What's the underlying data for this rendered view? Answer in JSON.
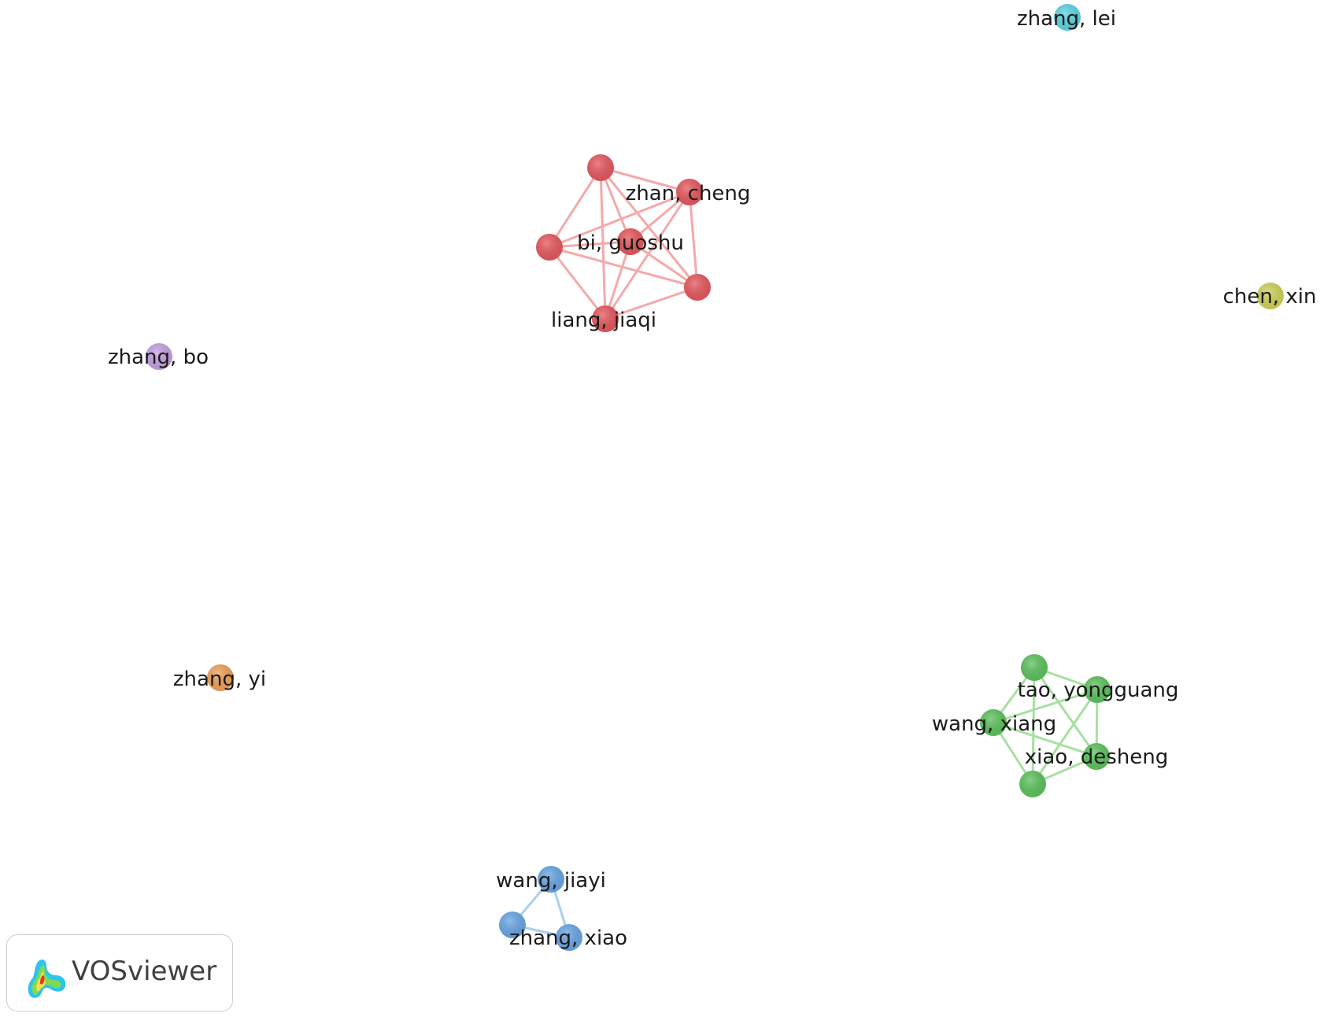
{
  "app": {
    "name": "VOSviewer"
  },
  "clusters": [
    {
      "id": "red",
      "color": "#e8595f",
      "edge_color": "#f4a9aa"
    },
    {
      "id": "green",
      "color": "#5fc45f",
      "edge_color": "#a7e0a1"
    },
    {
      "id": "blue",
      "color": "#6aa8e6",
      "edge_color": "#a9cff0"
    },
    {
      "id": "cyan",
      "color": "#5fd6e6",
      "edge_color": "#a9e6f0"
    },
    {
      "id": "yellow",
      "color": "#d1d45a",
      "edge_color": "#e6e8a8"
    },
    {
      "id": "purple",
      "color": "#c8a2e6",
      "edge_color": "#e0cdf2"
    },
    {
      "id": "orange",
      "color": "#f2a35c",
      "edge_color": "#f7cfa8"
    }
  ],
  "nodes": [
    {
      "id": "r1",
      "label": "",
      "cluster": "red"
    },
    {
      "id": "zhan-cheng",
      "label": "zhan, cheng",
      "cluster": "red"
    },
    {
      "id": "bi-guoshu",
      "label": "bi, guoshu",
      "cluster": "red"
    },
    {
      "id": "r4",
      "label": "",
      "cluster": "red"
    },
    {
      "id": "r5",
      "label": "",
      "cluster": "red"
    },
    {
      "id": "liang-jiaqi",
      "label": "liang, jiaqi",
      "cluster": "red"
    },
    {
      "id": "g1",
      "label": "",
      "cluster": "green"
    },
    {
      "id": "tao-yongguang",
      "label": "tao, yongguang",
      "cluster": "green"
    },
    {
      "id": "wang-xiang",
      "label": "wang, xiang",
      "cluster": "green"
    },
    {
      "id": "xiao-desheng",
      "label": "xiao, desheng",
      "cluster": "green"
    },
    {
      "id": "g5",
      "label": "",
      "cluster": "green"
    },
    {
      "id": "wang-jiayi",
      "label": "wang, jiayi",
      "cluster": "blue"
    },
    {
      "id": "b2",
      "label": "",
      "cluster": "blue"
    },
    {
      "id": "zhang-xiao",
      "label": "zhang, xiao",
      "cluster": "blue"
    },
    {
      "id": "zhang-lei",
      "label": "zhang, lei",
      "cluster": "cyan"
    },
    {
      "id": "chen-xin",
      "label": "chen, xin",
      "cluster": "yellow"
    },
    {
      "id": "zhang-bo",
      "label": "zhang, bo",
      "cluster": "purple"
    },
    {
      "id": "zhang-yi",
      "label": "zhang, yi",
      "cluster": "orange"
    }
  ],
  "links": [
    [
      "r1",
      "zhan-cheng"
    ],
    [
      "r1",
      "bi-guoshu"
    ],
    [
      "r1",
      "r4"
    ],
    [
      "r1",
      "r5"
    ],
    [
      "r1",
      "liang-jiaqi"
    ],
    [
      "zhan-cheng",
      "bi-guoshu"
    ],
    [
      "zhan-cheng",
      "r4"
    ],
    [
      "zhan-cheng",
      "r5"
    ],
    [
      "zhan-cheng",
      "liang-jiaqi"
    ],
    [
      "bi-guoshu",
      "r4"
    ],
    [
      "bi-guoshu",
      "r5"
    ],
    [
      "bi-guoshu",
      "liang-jiaqi"
    ],
    [
      "r4",
      "r5"
    ],
    [
      "r4",
      "liang-jiaqi"
    ],
    [
      "r5",
      "liang-jiaqi"
    ],
    [
      "g1",
      "tao-yongguang"
    ],
    [
      "g1",
      "wang-xiang"
    ],
    [
      "g1",
      "xiao-desheng"
    ],
    [
      "g1",
      "g5"
    ],
    [
      "tao-yongguang",
      "wang-xiang"
    ],
    [
      "tao-yongguang",
      "xiao-desheng"
    ],
    [
      "tao-yongguang",
      "g5"
    ],
    [
      "wang-xiang",
      "xiao-desheng"
    ],
    [
      "wang-xiang",
      "g5"
    ],
    [
      "xiao-desheng",
      "g5"
    ],
    [
      "wang-jiayi",
      "b2"
    ],
    [
      "wang-jiayi",
      "zhang-xiao"
    ],
    [
      "b2",
      "zhang-xiao"
    ]
  ]
}
